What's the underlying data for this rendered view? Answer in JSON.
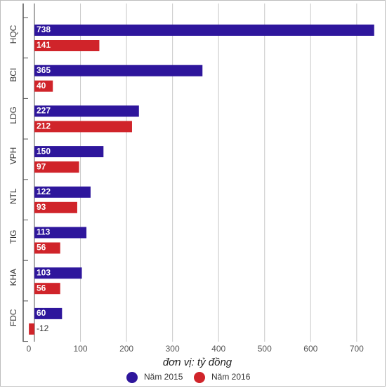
{
  "chart_data": {
    "type": "bar",
    "orientation": "horizontal",
    "categories": [
      "HQC",
      "BCI",
      "LDG",
      "VPH",
      "NTL",
      "TIG",
      "KHA",
      "FDC"
    ],
    "series": [
      {
        "name": "Năm 2015",
        "color": "#2e169c",
        "values": [
          738,
          365,
          227,
          150,
          122,
          113,
          103,
          60
        ]
      },
      {
        "name": "Năm 2016",
        "color": "#d0242a",
        "values": [
          141,
          40,
          212,
          97,
          93,
          56,
          56,
          -12
        ]
      }
    ],
    "xticks": [
      0,
      100,
      200,
      300,
      400,
      500,
      600,
      700
    ],
    "xlim": [
      -12,
      750
    ],
    "xlabel": "đơn vị: tỷ đồng",
    "grid": true,
    "legend_position": "bottom"
  }
}
